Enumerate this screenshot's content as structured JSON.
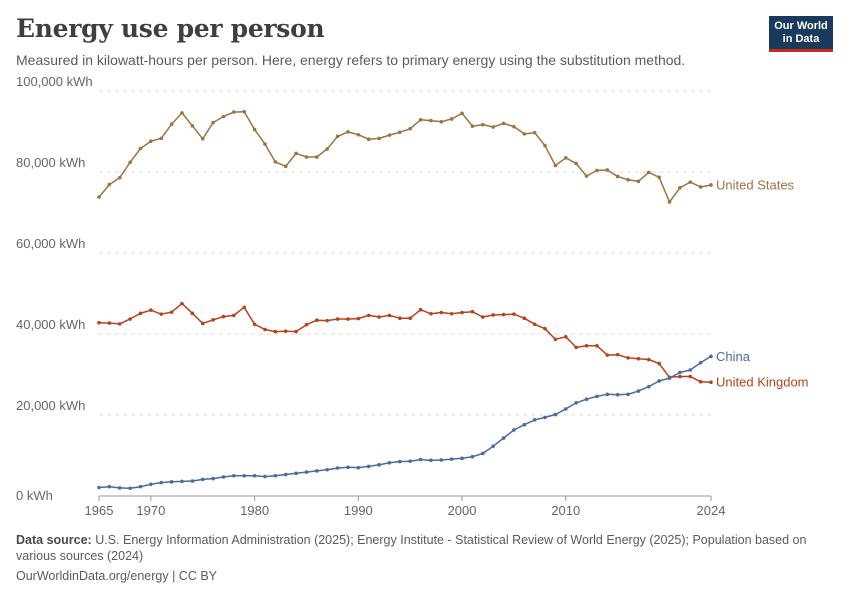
{
  "header": {
    "title": "Energy use per person",
    "subtitle": "Measured in kilowatt-hours per person. Here, energy refers to primary energy using the substitution method.",
    "logo_line1": "Our World",
    "logo_line2": "in Data"
  },
  "footer": {
    "source_label": "Data source:",
    "source_text": "U.S. Energy Information Administration (2025); Energy Institute - Statistical Review of World Energy (2025); Population based on various sources (2024)",
    "url": "OurWorldinData.org/energy | CC BY"
  },
  "colors": {
    "United States": "#9a7443",
    "United Kingdom": "#b5431d",
    "China": "#4c6a9c",
    "grid": "#dddddd",
    "axis": "#999999"
  },
  "chart_data": {
    "type": "line",
    "xlim": [
      1965,
      2024
    ],
    "ylim": [
      0,
      100000
    ],
    "x_ticks": [
      1965,
      1970,
      1980,
      1990,
      2000,
      2010,
      2024
    ],
    "y_ticks": [
      0,
      20000,
      40000,
      60000,
      80000,
      100000
    ],
    "y_tick_labels": [
      "0 kWh",
      "20,000 kWh",
      "40,000 kWh",
      "60,000 kWh",
      "80,000 kWh",
      "100,000 kWh"
    ],
    "grid": "horizontal dashed",
    "legend": "inline labels at line ends",
    "x": [
      1965,
      1966,
      1967,
      1968,
      1969,
      1970,
      1971,
      1972,
      1973,
      1974,
      1975,
      1976,
      1977,
      1978,
      1979,
      1980,
      1981,
      1982,
      1983,
      1984,
      1985,
      1986,
      1987,
      1988,
      1989,
      1990,
      1991,
      1992,
      1993,
      1994,
      1995,
      1996,
      1997,
      1998,
      1999,
      2000,
      2001,
      2002,
      2003,
      2004,
      2005,
      2006,
      2007,
      2008,
      2009,
      2010,
      2011,
      2012,
      2013,
      2014,
      2015,
      2016,
      2017,
      2018,
      2019,
      2020,
      2021,
      2022,
      2023,
      2024
    ],
    "series": [
      {
        "name": "United States",
        "values": [
          73800,
          76900,
          78600,
          82400,
          85800,
          87600,
          88300,
          91800,
          94600,
          91400,
          88200,
          92200,
          93700,
          94800,
          94900,
          90500,
          86900,
          82500,
          81400,
          84600,
          83700,
          83700,
          85700,
          88800,
          89900,
          89200,
          88100,
          88300,
          89100,
          89800,
          90700,
          92900,
          92700,
          92400,
          93100,
          94500,
          91300,
          91700,
          91100,
          92000,
          91200,
          89400,
          89700,
          86500,
          81600,
          83500,
          82100,
          79000,
          80400,
          80500,
          78900,
          78100,
          77700,
          79900,
          78700,
          72600,
          76100,
          77500,
          76300,
          76800
        ]
      },
      {
        "name": "United Kingdom",
        "values": [
          42800,
          42700,
          42500,
          43700,
          45100,
          45900,
          44900,
          45400,
          47500,
          45100,
          42600,
          43500,
          44300,
          44600,
          46600,
          42400,
          41100,
          40600,
          40700,
          40600,
          42300,
          43400,
          43300,
          43700,
          43700,
          43800,
          44600,
          44200,
          44600,
          43900,
          43900,
          46000,
          45000,
          45300,
          45000,
          45300,
          45500,
          44200,
          44700,
          44800,
          44900,
          43900,
          42400,
          41300,
          38700,
          39300,
          36700,
          37100,
          37100,
          34800,
          34900,
          34100,
          33900,
          33700,
          32700,
          29300,
          29500,
          29500,
          28200,
          28100
        ]
      },
      {
        "name": "China",
        "values": [
          2100,
          2300,
          2000,
          1900,
          2300,
          2900,
          3300,
          3500,
          3600,
          3700,
          4100,
          4300,
          4700,
          5000,
          5000,
          5000,
          4800,
          5000,
          5300,
          5600,
          5900,
          6200,
          6500,
          6900,
          7100,
          7000,
          7300,
          7700,
          8200,
          8500,
          8600,
          9000,
          8800,
          8900,
          9100,
          9300,
          9700,
          10500,
          12300,
          14300,
          16300,
          17600,
          18800,
          19400,
          20100,
          21500,
          23000,
          23900,
          24600,
          25100,
          25000,
          25100,
          25900,
          27000,
          28400,
          29100,
          30500,
          31100,
          32900,
          34500
        ]
      }
    ]
  }
}
